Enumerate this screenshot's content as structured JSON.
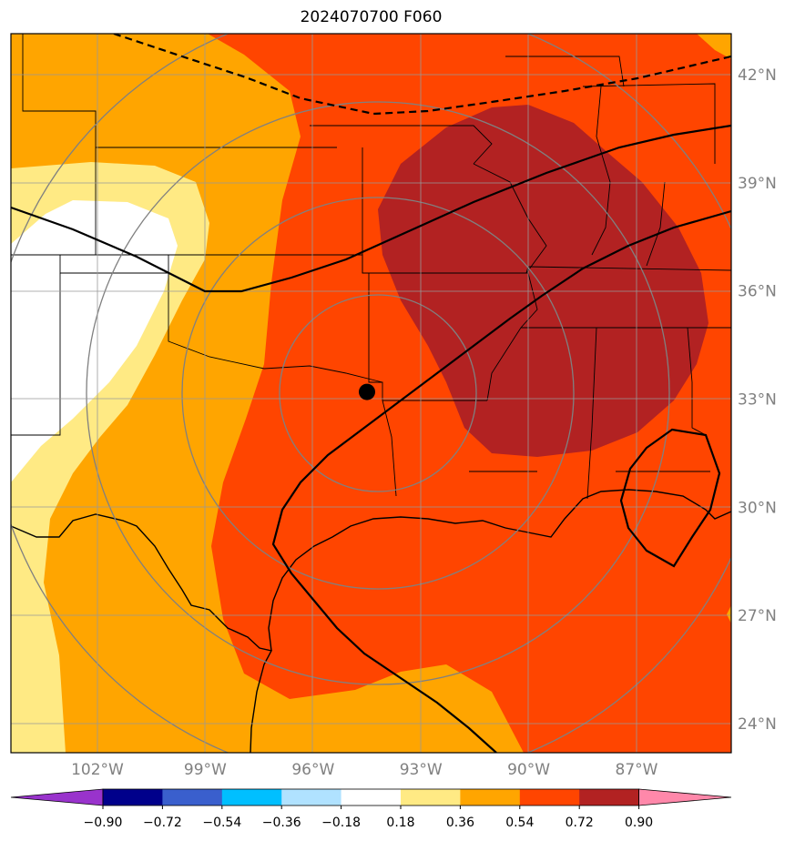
{
  "title": "2024070700 F060",
  "chart_data": {
    "type": "map",
    "title": "2024070700 F060",
    "lon_ticks": [
      {
        "value": -102,
        "label": "102°W"
      },
      {
        "value": -99,
        "label": "99°W"
      },
      {
        "value": -96,
        "label": "96°W"
      },
      {
        "value": -93,
        "label": "93°W"
      },
      {
        "value": -90,
        "label": "90°W"
      },
      {
        "value": -87,
        "label": "87°W"
      }
    ],
    "lat_ticks": [
      {
        "value": 42,
        "label": "42°N"
      },
      {
        "value": 39,
        "label": "39°N"
      },
      {
        "value": 36,
        "label": "36°N"
      },
      {
        "value": 33,
        "label": "33°N"
      },
      {
        "value": 30,
        "label": "30°N"
      },
      {
        "value": 27,
        "label": "27°N"
      },
      {
        "value": 24,
        "label": "24°N"
      }
    ],
    "center_point": {
      "lon": -94.5,
      "lat": 33.2
    },
    "colorbar": {
      "levels": [
        -0.9,
        -0.72,
        -0.54,
        -0.36,
        -0.18,
        0.18,
        0.36,
        0.54,
        0.72,
        0.9
      ],
      "labels": [
        "−0.90",
        "−0.72",
        "−0.54",
        "−0.36",
        "−0.18",
        "0.18",
        "0.36",
        "0.54",
        "0.72",
        "0.90"
      ],
      "colors": [
        "#9933cc",
        "#00008b",
        "#3a5fcd",
        "#00bfff",
        "#b0e2ff",
        "#ffffff",
        "#ffea84",
        "#ffa500",
        "#ff4500",
        "#b22222",
        "#ff88aa"
      ],
      "extend": "both"
    },
    "grid": true
  }
}
